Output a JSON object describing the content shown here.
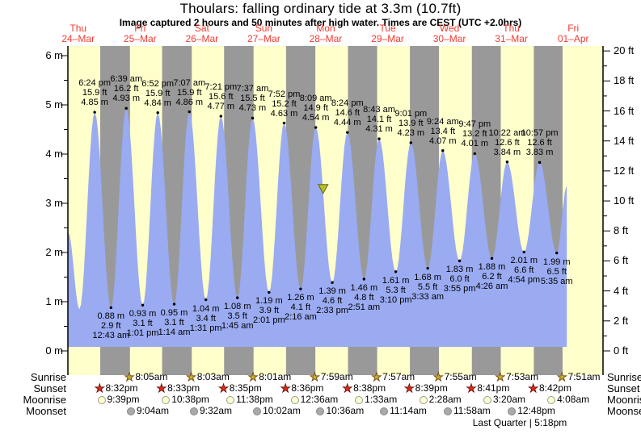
{
  "title": "Thoulars: falling  ordinary tide at 3.3m (10.7ft)",
  "subtitle": "Image captured 2 hours and 50 minutes after high water. Times are CEST (UTC +2.0hrs)",
  "colors": {
    "day_background": "#ffffcc",
    "night_band": "#999999",
    "tide_fill": "#9aabf2",
    "day_label_red": "#f23b32",
    "marker_fill": "#b6bf2a",
    "marker_stroke": "#5f6608"
  },
  "days": [
    {
      "day": "Thu",
      "date": "24–Mar"
    },
    {
      "day": "Fri",
      "date": "25–Mar"
    },
    {
      "day": "Sat",
      "date": "26–Mar"
    },
    {
      "day": "Sun",
      "date": "27–Mar"
    },
    {
      "day": "Mon",
      "date": "28–Mar"
    },
    {
      "day": "Tue",
      "date": "29–Mar"
    },
    {
      "day": "Wed",
      "date": "30–Mar"
    },
    {
      "day": "Thu",
      "date": "31–Mar"
    },
    {
      "day": "Fri",
      "date": "01–Apr"
    }
  ],
  "axes": {
    "left_unit": "m",
    "left_tick_values": [
      0,
      1,
      2,
      3,
      4,
      5,
      6
    ],
    "right_unit": "ft",
    "right_tick_values": [
      0,
      2,
      4,
      6,
      8,
      10,
      12,
      14,
      16,
      18,
      20
    ]
  },
  "chart_data": {
    "type": "area",
    "title": "Tide height over time",
    "ylim_m": [
      0,
      6
    ],
    "ylim_ft": [
      0,
      20
    ],
    "high_tides": [
      {
        "day": 0,
        "time": "6:24 pm",
        "height_ft": 15.9,
        "height_m": 4.85
      },
      {
        "day": 1,
        "time": "6:39 am",
        "height_ft": 16.2,
        "height_m": 4.93
      },
      {
        "day": 1,
        "time": "6:52 pm",
        "height_ft": 15.9,
        "height_m": 4.84
      },
      {
        "day": 2,
        "time": "7:07 am",
        "height_ft": 15.9,
        "height_m": 4.86
      },
      {
        "day": 2,
        "time": "7:21 pm",
        "height_ft": 15.6,
        "height_m": 4.77
      },
      {
        "day": 3,
        "time": "7:37 am",
        "height_ft": 15.5,
        "height_m": 4.73
      },
      {
        "day": 3,
        "time": "7:52 pm",
        "height_ft": 15.2,
        "height_m": 4.63
      },
      {
        "day": 4,
        "time": "8:09 am",
        "height_ft": 14.9,
        "height_m": 4.54
      },
      {
        "day": 4,
        "time": "8:24 pm",
        "height_ft": 14.6,
        "height_m": 4.44
      },
      {
        "day": 5,
        "time": "8:43 am",
        "height_ft": 14.1,
        "height_m": 4.31
      },
      {
        "day": 5,
        "time": "9:01 pm",
        "height_ft": 13.9,
        "height_m": 4.23
      },
      {
        "day": 6,
        "time": "9:24 am",
        "height_ft": 13.4,
        "height_m": 4.07
      },
      {
        "day": 6,
        "time": "9:47 pm",
        "height_ft": 13.2,
        "height_m": 4.01
      },
      {
        "day": 7,
        "time": "10:22 am",
        "height_ft": 12.6,
        "height_m": 3.84
      },
      {
        "day": 7,
        "time": "10:57 pm",
        "height_ft": 12.6,
        "height_m": 3.83
      }
    ],
    "low_tides": [
      {
        "day": 1,
        "time": "12:43 am",
        "height_ft": 2.9,
        "height_m": 0.88
      },
      {
        "day": 1,
        "time": "1:01 pm",
        "height_ft": 3.1,
        "height_m": 0.93
      },
      {
        "day": 2,
        "time": "1:14 am",
        "height_ft": 3.1,
        "height_m": 0.95
      },
      {
        "day": 2,
        "time": "1:31 pm",
        "height_ft": 3.4,
        "height_m": 1.04
      },
      {
        "day": 3,
        "time": "1:45 am",
        "height_ft": 3.5,
        "height_m": 1.08
      },
      {
        "day": 3,
        "time": "2:01 pm",
        "height_ft": 3.9,
        "height_m": 1.19
      },
      {
        "day": 4,
        "time": "2:16 am",
        "height_ft": 4.1,
        "height_m": 1.26
      },
      {
        "day": 4,
        "time": "2:33 pm",
        "height_ft": 4.6,
        "height_m": 1.39
      },
      {
        "day": 5,
        "time": "2:51 am",
        "height_ft": 4.8,
        "height_m": 1.46
      },
      {
        "day": 5,
        "time": "3:10 pm",
        "height_ft": 5.3,
        "height_m": 1.61
      },
      {
        "day": 6,
        "time": "3:33 am",
        "height_ft": 5.5,
        "height_m": 1.68
      },
      {
        "day": 6,
        "time": "3:55 pm",
        "height_ft": 6.0,
        "height_m": 1.83
      },
      {
        "day": 7,
        "time": "4:26 am",
        "height_ft": 6.2,
        "height_m": 1.88
      },
      {
        "day": 7,
        "time": "4:54 pm",
        "height_ft": 6.6,
        "height_m": 2.01
      },
      {
        "day": 8,
        "time": "5:35 am",
        "height_ft": 6.5,
        "height_m": 1.99
      }
    ],
    "curve_edges": {
      "start": [
        {
          "day": 0,
          "time": "8:10 am",
          "height_m": 2.4
        },
        {
          "day": 0,
          "time": "12:30 pm",
          "height_m": 0.85
        }
      ],
      "end": {
        "day": 8,
        "time": "9:30 am",
        "height_m": 3.35
      }
    },
    "capture_marker": {
      "day": 4,
      "time": "10:59 am",
      "height_m": 3.3
    }
  },
  "almanac": {
    "rows": [
      {
        "label": "Sunrise",
        "icon": "sunrise-star",
        "events": [
          {
            "day": 1,
            "time": "8:05am"
          },
          {
            "day": 2,
            "time": "8:03am"
          },
          {
            "day": 3,
            "time": "8:01am"
          },
          {
            "day": 4,
            "time": "7:59am"
          },
          {
            "day": 5,
            "time": "7:57am"
          },
          {
            "day": 6,
            "time": "7:55am"
          },
          {
            "day": 7,
            "time": "7:53am"
          },
          {
            "day": 8,
            "time": "7:51am"
          }
        ]
      },
      {
        "label": "Sunset",
        "icon": "sunset-star",
        "events": [
          {
            "day": 0,
            "time": "8:32pm"
          },
          {
            "day": 1,
            "time": "8:33pm"
          },
          {
            "day": 2,
            "time": "8:35pm"
          },
          {
            "day": 3,
            "time": "8:36pm"
          },
          {
            "day": 4,
            "time": "8:38pm"
          },
          {
            "day": 5,
            "time": "8:39pm"
          },
          {
            "day": 6,
            "time": "8:41pm"
          },
          {
            "day": 7,
            "time": "8:42pm"
          }
        ]
      },
      {
        "label": "Moonrise",
        "icon": "moonrise-circle",
        "events": [
          {
            "day": 0,
            "time": "9:39pm"
          },
          {
            "day": 1,
            "time": "10:38pm"
          },
          {
            "day": 2,
            "time": "11:38pm"
          },
          {
            "day": 4,
            "time": "12:36am"
          },
          {
            "day": 5,
            "time": "1:33am"
          },
          {
            "day": 6,
            "time": "2:28am"
          },
          {
            "day": 7,
            "time": "3:20am"
          },
          {
            "day": 8,
            "time": "4:08am"
          }
        ]
      },
      {
        "label": "Moonset",
        "icon": "moonset-circle",
        "events": [
          {
            "day": 1,
            "time": "9:04am"
          },
          {
            "day": 2,
            "time": "9:32am"
          },
          {
            "day": 3,
            "time": "10:02am"
          },
          {
            "day": 4,
            "time": "10:36am"
          },
          {
            "day": 5,
            "time": "11:14am"
          },
          {
            "day": 6,
            "time": "11:58am"
          },
          {
            "day": 7,
            "time": "12:48pm"
          }
        ]
      }
    ],
    "moon_phase": "Last Quarter | 5:18pm"
  }
}
